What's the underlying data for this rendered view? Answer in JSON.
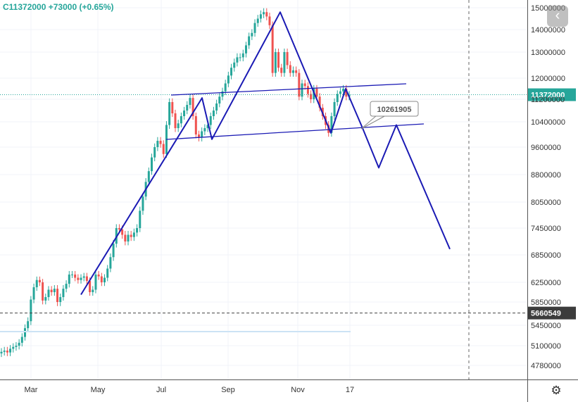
{
  "header": {
    "symbol": "C",
    "last": "11372000",
    "change": "+73000",
    "change_pct": "(+0.65%)"
  },
  "price_badges": {
    "current": "11372000",
    "line": "5660549"
  },
  "callout": "10261905",
  "colors": {
    "up": "#26a69a",
    "down": "#ef5350",
    "drawing": "#1a1ab4",
    "grid": "#f0f3fa",
    "current_price": "#26a69a",
    "dark_badge": "#3c3c3c"
  },
  "icons": {
    "nav": "chevron-left-icon",
    "settings": "gear-icon"
  },
  "chart_data": {
    "type": "candlestick",
    "x_ticks": [
      "Mar",
      "May",
      "Jul",
      "Sep",
      "Nov",
      "17"
    ],
    "y_ticks": [
      4780000,
      5100000,
      5450000,
      5850000,
      6250000,
      6850000,
      7450000,
      8050000,
      8800000,
      9600000,
      10400000,
      11200000,
      12000000,
      13000000,
      14000000,
      15000000
    ],
    "y_tick_labels": [
      "4780000",
      "5100000",
      "5450000",
      "5850000",
      "6250000",
      "6850000",
      "7450000",
      "8050000",
      "8800000",
      "9600000",
      "10400000",
      "11200000",
      "12000000",
      "13000000",
      "14000000",
      "15000000"
    ],
    "current_price": 11372000,
    "horizontal_line": 5660549,
    "callout_value": 10261905,
    "candles_close": [
      5000000,
      5020000,
      4990000,
      5050000,
      5080000,
      5100000,
      5150000,
      5250000,
      5400000,
      5520000,
      5900000,
      6150000,
      6300000,
      6250000,
      5880000,
      5950000,
      6100000,
      6050000,
      6120000,
      5850000,
      5950000,
      6120000,
      6220000,
      6420000,
      6420000,
      6350000,
      6300000,
      6350000,
      6380000,
      6280000,
      6050000,
      6100000,
      6420000,
      6380000,
      6250000,
      6350000,
      6550000,
      6800000,
      7100000,
      7450000,
      7420000,
      7300000,
      7150000,
      7300000,
      7250000,
      7350000,
      7450000,
      7850000,
      8200000,
      8600000,
      8900000,
      9300000,
      9600000,
      9800000,
      9700000,
      9400000,
      10300000,
      11100000,
      10700000,
      10200000,
      10350000,
      10600000,
      10800000,
      11000000,
      11250000,
      10600000,
      10000000,
      9900000,
      10100000,
      10200000,
      10300000,
      10600000,
      10800000,
      11050000,
      11300000,
      11500000,
      11800000,
      12100000,
      12400000,
      12600000,
      12800000,
      12800000,
      12950000,
      13300000,
      13700000,
      13850000,
      14300000,
      14500000,
      14700000,
      14800000,
      14600000,
      14200000,
      12200000,
      13000000,
      12400000,
      12200000,
      13000000,
      12500000,
      12200000,
      12300000,
      12200000,
      11300000,
      11800000,
      11700000,
      11400000,
      11200000,
      11600000,
      11300000,
      10900000,
      10600000,
      10300000,
      10050000,
      10600000,
      11100000,
      11400000,
      11500000,
      11600000,
      11300000,
      11372000
    ],
    "drawn_pattern_prices": [
      6000000,
      11250000,
      9850000,
      14800000,
      10050000,
      11600000,
      10200000,
      9000000,
      10300000,
      6980000
    ]
  }
}
